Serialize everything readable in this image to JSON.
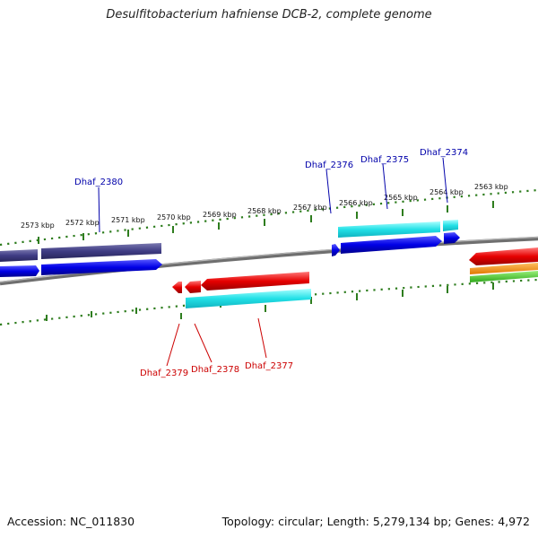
{
  "title": "Desulfitobacterium hafniense DCB-2, complete genome",
  "footer": {
    "accession": "Accession: NC_011830",
    "summary": "Topology: circular; Length: 5,279,134 bp; Genes: 4,972"
  },
  "ruler": {
    "kbp_labels": [
      "2573 kbp",
      "2572 kbp",
      "2571 kbp",
      "2570 kbp",
      "2569 kbp",
      "2568 kbp",
      "2567 kbp",
      "2566 kbp",
      "2565 kbp",
      "2564 kbp",
      "2563 kbp"
    ]
  },
  "gene_labels": {
    "top": [
      "Dhaf_2380",
      "Dhaf_2376",
      "Dhaf_2375",
      "Dhaf_2374"
    ],
    "bottom": [
      "Dhaf_2379",
      "Dhaf_2378",
      "Dhaf_2377"
    ]
  },
  "colors": {
    "forward_label": "#0000aa",
    "reverse_label": "#cc0000",
    "tick": "#2e7d1e",
    "backbone": "#808080"
  }
}
